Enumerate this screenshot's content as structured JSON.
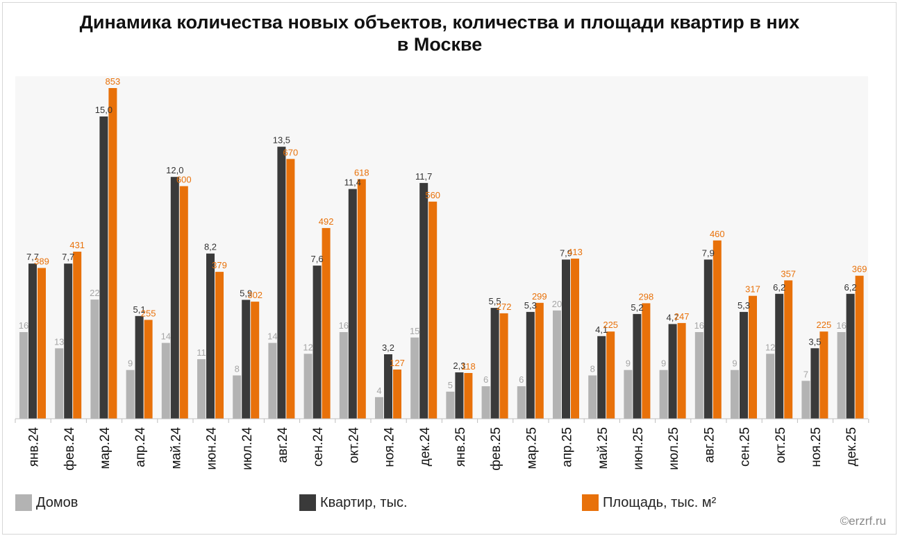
{
  "title": "Динамика количества новых объектов, количества и площади квартир в них\nв Москве",
  "credit": "©erzrf.ru",
  "chart_data": {
    "type": "bar",
    "title": "Динамика количества новых объектов, количества и площади квартир в них в Москве",
    "categories": [
      "янв.24",
      "фев.24",
      "мар.24",
      "апр.24",
      "май.24",
      "июн.24",
      "июл.24",
      "авг.24",
      "сен.24",
      "окт.24",
      "ноя.24",
      "дек.24",
      "янв.25",
      "фев.25",
      "мар.25",
      "апр.25",
      "май.25",
      "июн.25",
      "июл.25",
      "авг.25",
      "сен.25",
      "окт.25",
      "ноя.25",
      "дек.25"
    ],
    "series": [
      {
        "name": "Домов",
        "color": "#b3b3b3",
        "values": [
          16,
          13,
          22,
          9,
          14,
          11,
          8,
          14,
          12,
          16,
          4,
          15,
          5,
          6,
          6,
          20,
          8,
          9,
          9,
          16,
          9,
          12,
          7,
          16
        ],
        "labels": [
          "16",
          "13",
          "22",
          "9",
          "14",
          "11",
          "8",
          "14",
          "12",
          "16",
          "4",
          "15",
          "5",
          "6",
          "6",
          "20",
          "8",
          "9",
          "9",
          "16",
          "9",
          "12",
          "7",
          "16"
        ]
      },
      {
        "name": "Квартир, тыс.",
        "color": "#3a3a3a",
        "values": [
          7.7,
          7.7,
          15.0,
          5.1,
          12.0,
          8.2,
          5.9,
          13.5,
          7.6,
          11.4,
          3.2,
          11.7,
          2.3,
          5.5,
          5.3,
          7.9,
          4.1,
          5.2,
          4.7,
          7.9,
          5.3,
          6.2,
          3.5,
          6.2
        ],
        "labels": [
          "7,7",
          "7,7",
          "15,0",
          "5,1",
          "12,0",
          "8,2",
          "5,9",
          "13,5",
          "7,6",
          "11,4",
          "3,2",
          "11,7",
          "2,3",
          "5,5",
          "5,3",
          "7,9",
          "4,1",
          "5,2",
          "4,7",
          "7,9",
          "5,3",
          "6,2",
          "3,5",
          "6,2"
        ]
      },
      {
        "name": "Площадь, тыс. м²",
        "color": "#e8710a",
        "values": [
          389,
          431,
          853,
          255,
          600,
          379,
          302,
          670,
          492,
          618,
          127,
          560,
          118,
          272,
          299,
          413,
          225,
          298,
          247,
          460,
          317,
          357,
          225,
          369
        ],
        "labels": [
          "389",
          "431",
          "853",
          "255",
          "600",
          "379",
          "302",
          "670",
          "492",
          "618",
          "127",
          "560",
          "118",
          "272",
          "299",
          "413",
          "225",
          "298",
          "247",
          "460",
          "317",
          "357",
          "225",
          "369"
        ]
      }
    ],
    "legend": "bottom",
    "grid": false
  }
}
